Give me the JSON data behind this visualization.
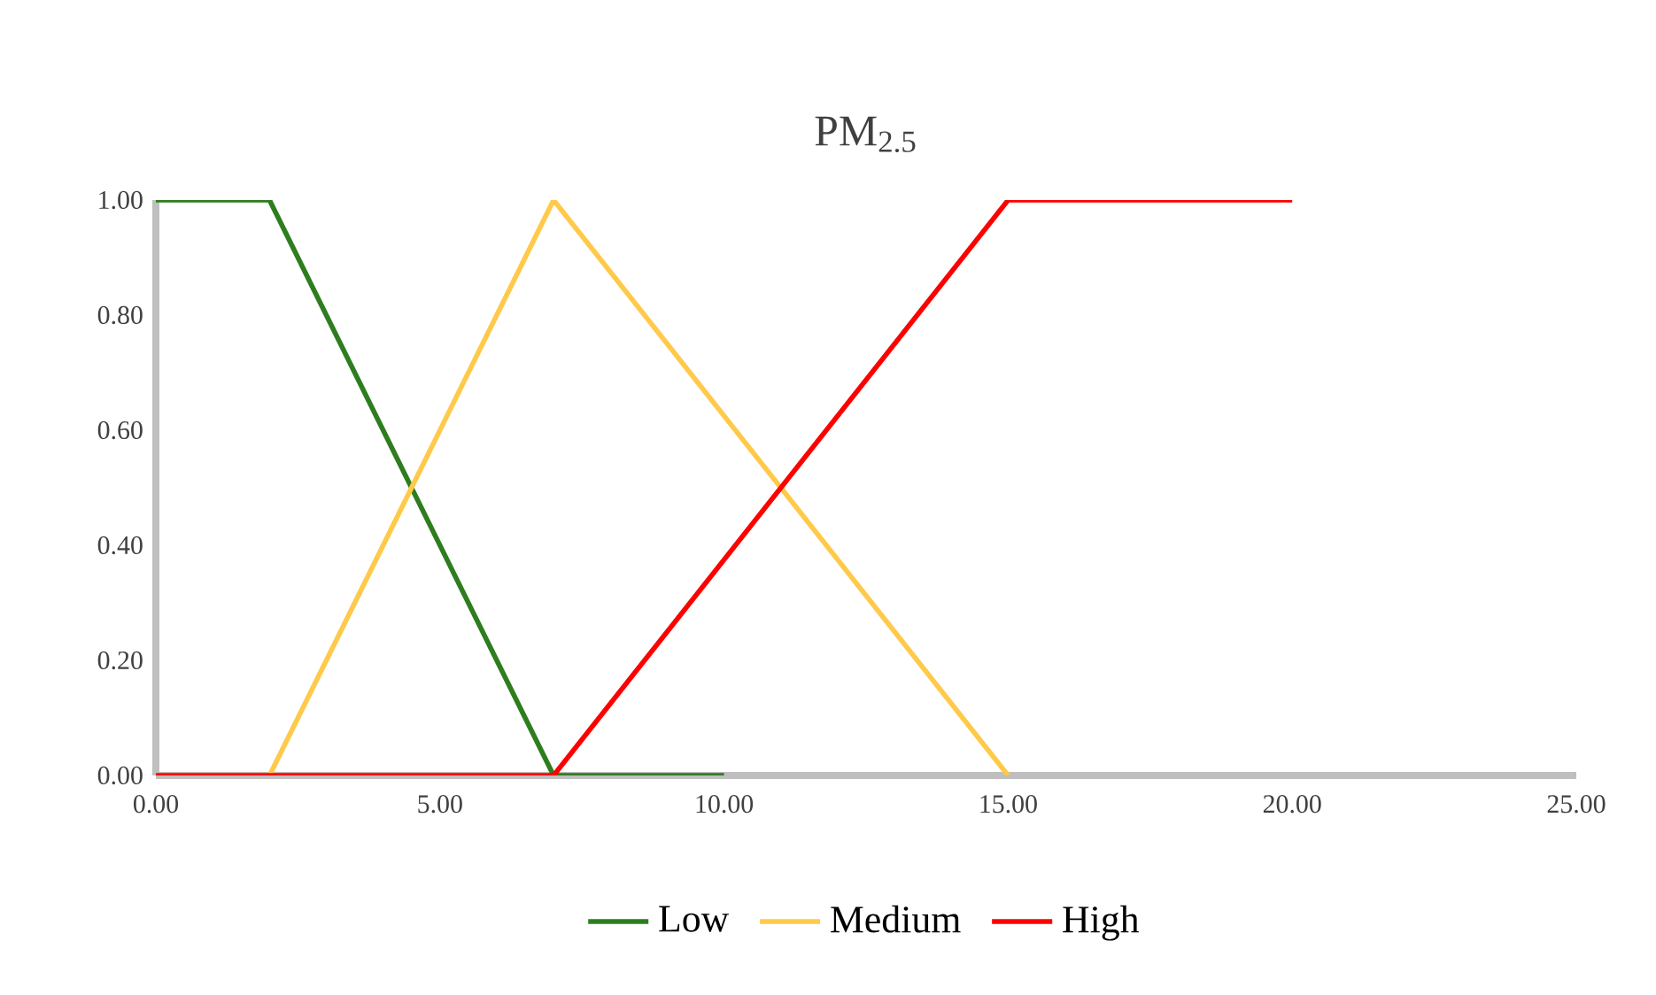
{
  "chart_data": {
    "type": "line",
    "title": "PM$_{2.5}$",
    "series": [
      {
        "name": "Low",
        "color": "#2e7d1e",
        "x": [
          0,
          2,
          7,
          10
        ],
        "values": [
          1,
          1,
          0,
          0
        ]
      },
      {
        "name": "Medium",
        "color": "#ffc94a",
        "x": [
          0,
          2,
          7,
          15
        ],
        "values": [
          0,
          0,
          1,
          0
        ]
      },
      {
        "name": "High",
        "color": "#ff0000",
        "x": [
          0,
          7,
          15,
          20
        ],
        "values": [
          0,
          0,
          1,
          1
        ]
      }
    ],
    "xlim": [
      0,
      25
    ],
    "ylim": [
      0,
      1
    ],
    "xticks": [
      {
        "value": 0,
        "label": "0.00"
      },
      {
        "value": 5,
        "label": "5.00"
      },
      {
        "value": 10,
        "label": "10.00"
      },
      {
        "value": 15,
        "label": "15.00"
      },
      {
        "value": 20,
        "label": "20.00"
      },
      {
        "value": 25,
        "label": "25.00"
      }
    ],
    "yticks": [
      {
        "value": 0,
        "label": "0.00"
      },
      {
        "value": 0.2,
        "label": "0.20"
      },
      {
        "value": 0.4,
        "label": "0.40"
      },
      {
        "value": 0.6,
        "label": "0.60"
      },
      {
        "value": 0.8,
        "label": "0.80"
      },
      {
        "value": 1,
        "label": "1.00"
      }
    ],
    "grid": false,
    "legend": "bottom"
  }
}
